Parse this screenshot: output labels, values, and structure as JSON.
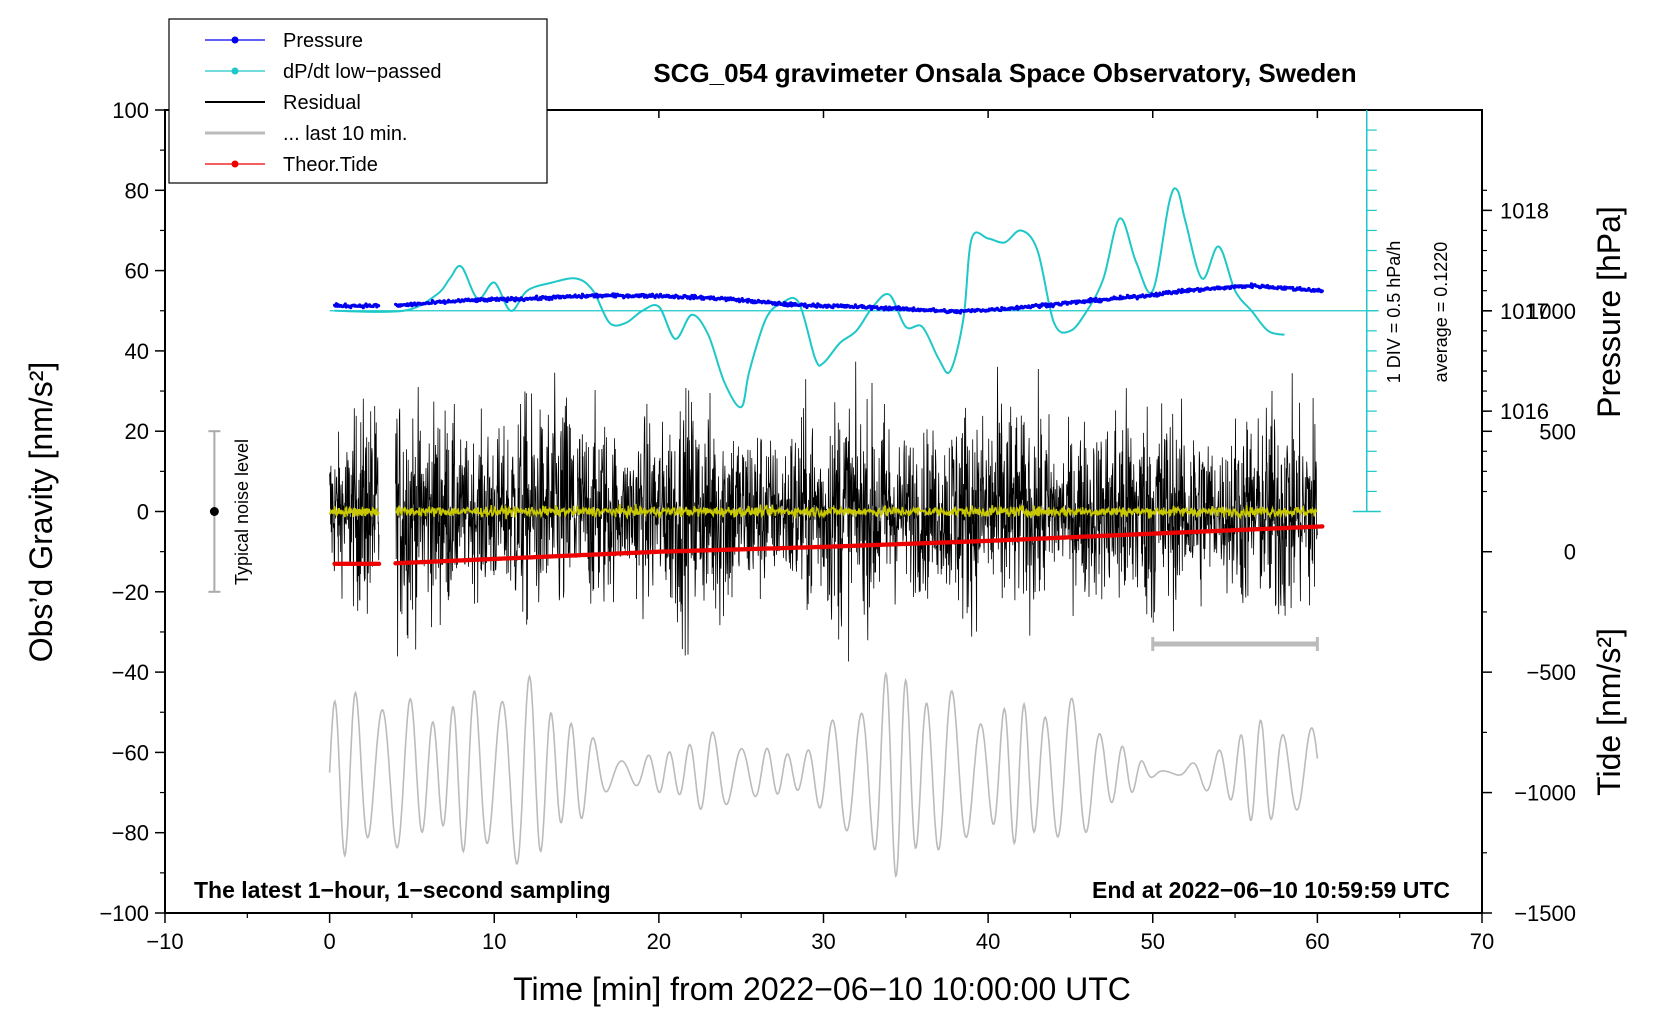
{
  "chart_data": {
    "type": "line",
    "title": "SCG_054 gravimeter Onsala Space Observatory, Sweden",
    "xlabel": "Time [min] from 2022−06−10 10:00:00 UTC",
    "ylabel_left": "Obs’d Gravity [nm/s²]",
    "ylabel_right_top": "Pressure [hPa]",
    "ylabel_right_bottom": "Tide [nm/s²]",
    "xlim": [
      -10,
      70
    ],
    "ylim": [
      -100,
      100
    ],
    "xticks": [
      "−10",
      "0",
      "10",
      "20",
      "30",
      "40",
      "50",
      "60",
      "70"
    ],
    "yticks": [
      "−100",
      "−80",
      "−60",
      "−40",
      "−20",
      "0",
      "20",
      "40",
      "60",
      "80",
      "100"
    ],
    "pressure_ticks": [
      "1018",
      "1017",
      "1016"
    ],
    "pressure_tick_values": [
      1018,
      1017,
      1016
    ],
    "tide_ticks": [
      "1000",
      "500",
      "0",
      "−500",
      "−1000",
      "−1500"
    ],
    "tide_tick_values": [
      1000,
      500,
      0,
      -500,
      -1000,
      -1500
    ],
    "pressure_map": {
      "hpa_at_gravity_0": 1015,
      "hpa_per_20_gravity_units": 0.8
    },
    "tide_map": {
      "tide_at_gravity_minus100": -1500,
      "tide_per_gravity_unit": 16.67,
      "tide_at_gravity_minus63": -885
    },
    "legend": {
      "placement": "top-left",
      "entries": [
        {
          "label": "Pressure",
          "color": "#0000ee",
          "style": "line-dot"
        },
        {
          "label": "dP/dt low−passed",
          "color": "#1fc8c8",
          "style": "line-dot"
        },
        {
          "label": "Residual",
          "color": "#000000",
          "style": "line"
        },
        {
          "label": "... last 10 min.",
          "color": "#bbbbbb",
          "style": "line"
        },
        {
          "label": "Theor.Tide",
          "color": "#ee0000",
          "style": "line-dot"
        }
      ]
    },
    "annotations": {
      "bottom_left": "The latest 1−hour, 1−second sampling",
      "bottom_right": "End at 2022−06−10 10:59:59 UTC",
      "noise_label": "Typical noise level",
      "dpdt_scale": "1 DIV = 0.5 hPa/h",
      "dpdt_average": "average = 0.1220"
    },
    "noise_bar": {
      "x": -7,
      "center": 0,
      "low": -20,
      "high": 20
    },
    "last10_bar": {
      "x_start": 50,
      "x_end": 60,
      "y": -33
    },
    "dpdt_axis": {
      "x": 63,
      "y_baseline": 50,
      "y_top": 100,
      "y_bottom": 0
    },
    "series": [
      {
        "name": "Pressure",
        "color": "#0000ee",
        "units": "hPa",
        "x": [
          0.3,
          3,
          4,
          8,
          12,
          16,
          20,
          24,
          28,
          32,
          36,
          38,
          41,
          45,
          49,
          52,
          56,
          60.3
        ],
        "values": [
          1017.05,
          1017.05,
          1017.05,
          1017.1,
          1017.12,
          1017.15,
          1017.15,
          1017.12,
          1017.06,
          1017.04,
          1017.01,
          1016.99,
          1017.02,
          1017.08,
          1017.14,
          1017.2,
          1017.25,
          1017.2
        ]
      },
      {
        "name": "dP/dt low-passed",
        "color": "#1fc8c8",
        "units": "gravity-axis units (baseline 50)",
        "x": [
          0.3,
          4.5,
          6.5,
          7.3,
          8,
          9,
          10,
          11,
          12,
          13.5,
          15,
          16,
          17,
          18,
          19,
          20,
          21,
          22,
          23,
          24,
          25,
          25.5,
          26.5,
          27.5,
          28.5,
          29.5,
          30,
          31,
          32,
          33,
          34,
          35,
          36,
          37,
          37.7,
          38.5,
          39,
          40,
          41,
          42,
          43,
          44,
          45,
          46,
          47,
          48,
          49,
          50,
          51,
          51.5,
          52,
          53,
          54,
          55,
          56,
          57,
          58
        ],
        "values": [
          50,
          50,
          54,
          58,
          61,
          53,
          57,
          50,
          55,
          57,
          58,
          55,
          47,
          47,
          50,
          51,
          43,
          49,
          44,
          32,
          26,
          35,
          48,
          52,
          52,
          38,
          37,
          42,
          45,
          51,
          54,
          46,
          46,
          38,
          35,
          48,
          68,
          68,
          67,
          70,
          65,
          47,
          45,
          50,
          58,
          73,
          62,
          55,
          77,
          80,
          72,
          58,
          66,
          55,
          50,
          45,
          44
        ]
      },
      {
        "name": "Residual",
        "color": "#000000",
        "units": "nm/s²",
        "x": [
          0,
          3,
          4,
          60
        ],
        "amplitude_envelope": [
          20,
          20,
          25,
          30
        ],
        "note": "±20–40 nm/s² high-frequency noise, gap between 3 and 4 min"
      },
      {
        "name": "Residual smoothed",
        "color": "#c8c800",
        "units": "nm/s²",
        "x": [
          0,
          60
        ],
        "values": [
          0,
          0
        ]
      },
      {
        "name": "... last 10 min.",
        "color": "#bbbbbb",
        "units": "nm/s² (gravity axis)",
        "x": [
          0,
          60
        ],
        "center": -65,
        "range": [
          -92,
          -30
        ]
      },
      {
        "name": "Theor.Tide",
        "color": "#ee0000",
        "units": "nm/s² (tide axis)",
        "x": [
          0.3,
          3,
          4,
          10,
          20,
          30,
          40,
          50,
          60.3
        ],
        "values": [
          -50,
          -50,
          -48,
          -30,
          0,
          20,
          45,
          75,
          105
        ]
      }
    ]
  }
}
